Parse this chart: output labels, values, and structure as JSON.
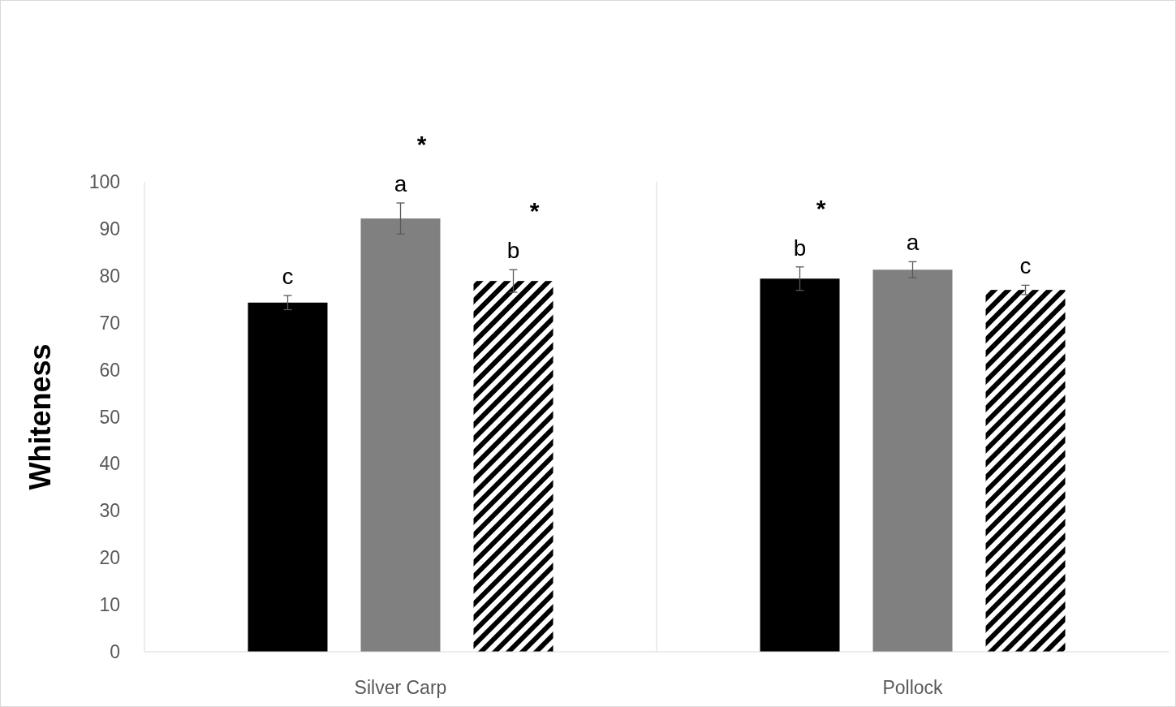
{
  "chart_data": {
    "type": "bar",
    "ylabel": "Whiteness",
    "categories": [
      "Silver Carp",
      "Pollock"
    ],
    "series": [
      {
        "color": "#000000",
        "values": [
          74.3,
          79.4
        ],
        "errors": [
          1.5,
          2.5
        ],
        "value_labels": [
          "c",
          "b"
        ]
      },
      {
        "color": "#808080",
        "values": [
          92.2,
          81.3
        ],
        "errors": [
          3.3,
          1.7
        ],
        "value_labels": [
          "a",
          "a"
        ]
      },
      {
        "color": "#000000",
        "values": [
          78.9,
          77.0
        ],
        "errors": [
          2.4,
          1.0
        ],
        "value_labels": [
          "b",
          "c"
        ]
      }
    ],
    "ylim": [
      0,
      100
    ],
    "yticks": [
      0,
      10,
      20,
      30,
      40,
      50,
      60,
      70,
      80,
      90,
      100
    ],
    "annotations": [
      "*",
      "*",
      "*"
    ]
  }
}
